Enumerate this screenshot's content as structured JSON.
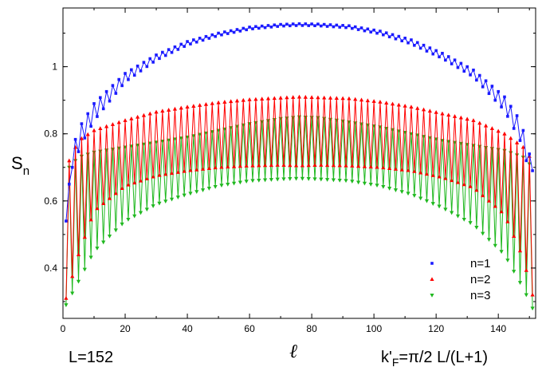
{
  "chart_data": {
    "type": "line",
    "xlabel": "ℓ",
    "ylabel_main": "S",
    "ylabel_sub": "n",
    "xlim": [
      0,
      152
    ],
    "ylim": [
      0.25,
      1.175
    ],
    "xticks": [
      "0",
      "20",
      "40",
      "60",
      "80",
      "100",
      "120",
      "140"
    ],
    "yticks": [
      "0.4",
      "0.6",
      "0.8",
      "1"
    ],
    "legend": [
      "n=1",
      "n=2",
      "n=3"
    ],
    "legend_position": "bottom-right",
    "annotations": {
      "size": "L=152",
      "kf_main": "k'",
      "kf_sub": "F",
      "kf_rest": "=π/2 L/(L+1)"
    },
    "series": [
      {
        "name": "n=1",
        "color": "#1a1aff",
        "marker": "square",
        "upper_envelope": [
          [
            1,
            0.54
          ],
          [
            3,
            0.76
          ],
          [
            6,
            0.83
          ],
          [
            10,
            0.89
          ],
          [
            20,
            0.98
          ],
          [
            30,
            1.035
          ],
          [
            40,
            1.075
          ],
          [
            50,
            1.1
          ],
          [
            60,
            1.118
          ],
          [
            70,
            1.126
          ],
          [
            76,
            1.128
          ],
          [
            82,
            1.127
          ],
          [
            92,
            1.122
          ],
          [
            102,
            1.106
          ],
          [
            112,
            1.08
          ],
          [
            122,
            1.04
          ],
          [
            132,
            0.99
          ],
          [
            142,
            0.91
          ],
          [
            147,
            0.84
          ],
          [
            149,
            0.78
          ],
          [
            151,
            0.7
          ]
        ],
        "lower_envelope": [
          [
            1,
            0.54
          ],
          [
            3,
            0.7
          ],
          [
            6,
            0.77
          ],
          [
            10,
            0.84
          ],
          [
            20,
            0.955
          ],
          [
            30,
            1.02
          ],
          [
            40,
            1.065
          ],
          [
            50,
            1.093
          ],
          [
            60,
            1.112
          ],
          [
            70,
            1.121
          ],
          [
            76,
            1.123
          ],
          [
            82,
            1.122
          ],
          [
            92,
            1.116
          ],
          [
            102,
            1.098
          ],
          [
            112,
            1.068
          ],
          [
            122,
            1.025
          ],
          [
            132,
            0.97
          ],
          [
            142,
            0.87
          ],
          [
            147,
            0.78
          ],
          [
            149,
            0.72
          ],
          [
            151,
            0.69
          ]
        ]
      },
      {
        "name": "n=2",
        "color": "#ff0000",
        "marker": "triangle-up",
        "upper_envelope": [
          [
            1,
            0.7
          ],
          [
            5,
            0.78
          ],
          [
            10,
            0.81
          ],
          [
            20,
            0.84
          ],
          [
            30,
            0.865
          ],
          [
            40,
            0.88
          ],
          [
            50,
            0.893
          ],
          [
            60,
            0.902
          ],
          [
            70,
            0.907
          ],
          [
            76,
            0.91
          ],
          [
            82,
            0.908
          ],
          [
            92,
            0.905
          ],
          [
            102,
            0.895
          ],
          [
            112,
            0.88
          ],
          [
            122,
            0.86
          ],
          [
            132,
            0.84
          ],
          [
            142,
            0.8
          ],
          [
            148,
            0.76
          ],
          [
            151,
            0.72
          ]
        ],
        "lower_envelope": [
          [
            1,
            0.31
          ],
          [
            5,
            0.44
          ],
          [
            10,
            0.57
          ],
          [
            20,
            0.645
          ],
          [
            30,
            0.675
          ],
          [
            40,
            0.69
          ],
          [
            50,
            0.7
          ],
          [
            60,
            0.705
          ],
          [
            70,
            0.707
          ],
          [
            76,
            0.705
          ],
          [
            82,
            0.707
          ],
          [
            92,
            0.705
          ],
          [
            102,
            0.7
          ],
          [
            112,
            0.69
          ],
          [
            122,
            0.67
          ],
          [
            132,
            0.64
          ],
          [
            142,
            0.56
          ],
          [
            148,
            0.43
          ],
          [
            151,
            0.32
          ]
        ]
      },
      {
        "name": "n=3",
        "color": "#1fb81f",
        "marker": "triangle-down",
        "upper_envelope": [
          [
            1,
            0.69
          ],
          [
            5,
            0.73
          ],
          [
            10,
            0.745
          ],
          [
            20,
            0.76
          ],
          [
            30,
            0.775
          ],
          [
            40,
            0.79
          ],
          [
            50,
            0.81
          ],
          [
            60,
            0.83
          ],
          [
            70,
            0.845
          ],
          [
            76,
            0.85
          ],
          [
            82,
            0.848
          ],
          [
            92,
            0.835
          ],
          [
            102,
            0.82
          ],
          [
            112,
            0.8
          ],
          [
            122,
            0.78
          ],
          [
            132,
            0.765
          ],
          [
            142,
            0.75
          ],
          [
            148,
            0.73
          ],
          [
            151,
            0.7
          ]
        ],
        "lower_envelope": [
          [
            1,
            0.29
          ],
          [
            5,
            0.36
          ],
          [
            10,
            0.45
          ],
          [
            20,
            0.54
          ],
          [
            30,
            0.59
          ],
          [
            40,
            0.62
          ],
          [
            50,
            0.645
          ],
          [
            60,
            0.66
          ],
          [
            70,
            0.665
          ],
          [
            76,
            0.667
          ],
          [
            82,
            0.665
          ],
          [
            92,
            0.66
          ],
          [
            102,
            0.645
          ],
          [
            112,
            0.62
          ],
          [
            122,
            0.58
          ],
          [
            132,
            0.53
          ],
          [
            142,
            0.44
          ],
          [
            148,
            0.34
          ],
          [
            151,
            0.28
          ]
        ]
      }
    ]
  }
}
